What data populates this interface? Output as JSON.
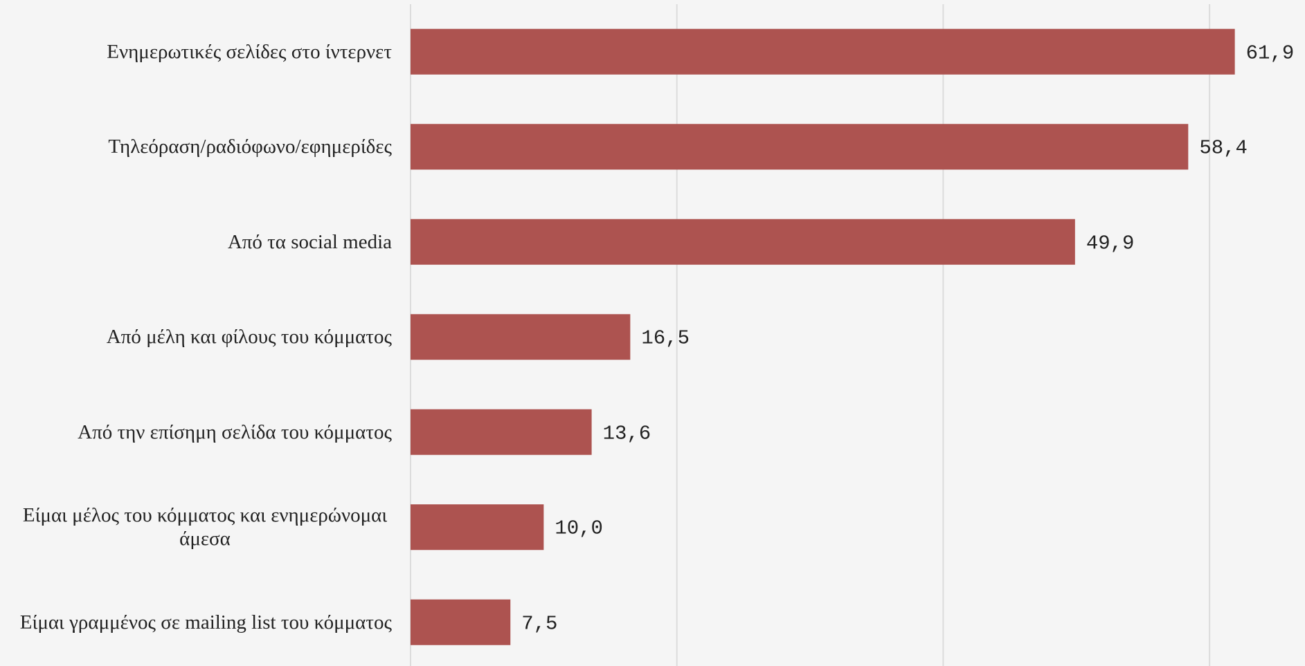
{
  "chart_data": {
    "type": "barh",
    "categories": [
      "Ενημερωτικές σελίδες στο ίντερνετ",
      "Τηλεόραση/ραδιόφωνο/εφημερίδες",
      "Από τα social media",
      "Από μέλη και φίλους του κόμματος",
      "Από την επίσημη σελίδα του κόμματος",
      "Είμαι μέλος του κόμματος και ενημερώνομαι άμεσα",
      "Είμαι γραμμένος σε mailing list του κόμματος"
    ],
    "values": [
      61.9,
      58.4,
      49.9,
      16.5,
      13.6,
      10.0,
      7.5
    ],
    "value_labels": [
      "61,9",
      "58,4",
      "49,9",
      "16,5",
      "13,6",
      "10,0",
      "7,5"
    ],
    "color": "#ad5350",
    "xlim": [
      0,
      67
    ],
    "xticks": [
      0,
      20,
      40,
      60
    ],
    "grid": true
  }
}
